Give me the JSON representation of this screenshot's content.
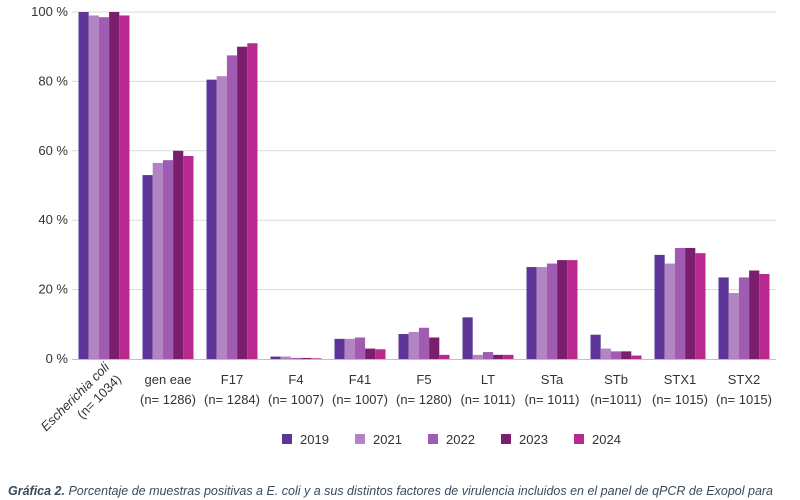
{
  "chart_data": {
    "type": "bar",
    "categories": [
      {
        "name": "Escherichia coli",
        "n": "(n= 1034)",
        "italic": true
      },
      {
        "name": "gen eae",
        "n": "(n= 1286)",
        "italic": false
      },
      {
        "name": "F17",
        "n": "(n= 1284)",
        "italic": false
      },
      {
        "name": "F4",
        "n": "(n= 1007)",
        "italic": false
      },
      {
        "name": "F41",
        "n": "(n= 1007)",
        "italic": false
      },
      {
        "name": "F5",
        "n": "(n= 1280)",
        "italic": false
      },
      {
        "name": "LT",
        "n": "(n= 1011)",
        "italic": false
      },
      {
        "name": "STa",
        "n": "(n= 1011)",
        "italic": false
      },
      {
        "name": "STb",
        "n": "(n=1011)",
        "italic": false
      },
      {
        "name": "STX1",
        "n": "(n= 1015)",
        "italic": false
      },
      {
        "name": "STX2",
        "n": "(n= 1015)",
        "italic": false
      }
    ],
    "series": [
      {
        "name": "2019",
        "color": "#5c3596",
        "values": [
          100,
          53,
          80.5,
          0.7,
          5.8,
          7.2,
          12,
          26.5,
          7,
          30,
          23.5
        ]
      },
      {
        "name": "2021",
        "color": "#b384c4",
        "values": [
          99,
          56.5,
          81.5,
          0.7,
          5.8,
          7.8,
          1.2,
          26.5,
          3,
          27.5,
          19
        ]
      },
      {
        "name": "2022",
        "color": "#a05bb2",
        "values": [
          98.5,
          57.3,
          87.5,
          0.3,
          6.2,
          9,
          2,
          27.5,
          2.2,
          32,
          23.5
        ]
      },
      {
        "name": "2023",
        "color": "#7a1e6e",
        "values": [
          100,
          60,
          90,
          0.3,
          3,
          6.2,
          1.2,
          28.5,
          2.2,
          32,
          25.5
        ]
      },
      {
        "name": "2024",
        "color": "#b82a8f",
        "values": [
          99,
          58.5,
          91,
          0.2,
          2.8,
          1.2,
          1.2,
          28.5,
          1,
          30.5,
          24.5
        ]
      }
    ],
    "yticks": [
      "0 %",
      "20 %",
      "40 %",
      "60 %",
      "80 %",
      "100 %"
    ],
    "ytick_values": [
      0,
      20,
      40,
      60,
      80,
      100
    ],
    "ylim": [
      0,
      100
    ],
    "grid": true,
    "legend_position": "bottom"
  },
  "caption": {
    "bold": "Gráfica 2.",
    "text": " Porcentaje de muestras positivas a E. coli y a sus distintos factores de virulencia incluidos en el panel de qPCR de Exopol para"
  }
}
